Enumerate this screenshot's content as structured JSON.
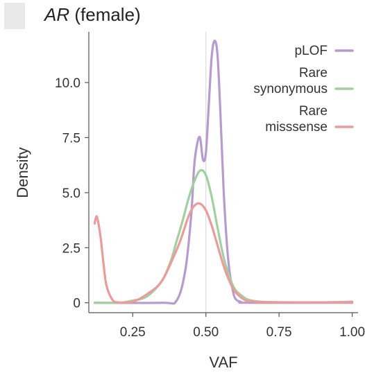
{
  "chart_data": {
    "type": "line",
    "title_gene": "AR",
    "title_rest": " (female)",
    "xlabel": "VAF",
    "ylabel": "Density",
    "xlim": [
      0.1,
      1.02
    ],
    "ylim": [
      -0.45,
      12.3
    ],
    "x_ticks": [
      0.25,
      0.5,
      0.75,
      1.0
    ],
    "x_tick_labels": [
      "0.25",
      "0.50",
      "0.75",
      "1.00"
    ],
    "y_ticks": [
      0,
      2.5,
      5.0,
      7.5,
      10.0
    ],
    "y_tick_labels": [
      "0",
      "2.5",
      "5.0",
      "7.5",
      "10.0"
    ],
    "reference_line_x": 0.5,
    "legend_position": "top-right",
    "series": [
      {
        "name": "pLOF",
        "legend_lines": [
          "pLOF"
        ],
        "color": "#b69ad0",
        "x": [
          0.12,
          0.35,
          0.4,
          0.43,
          0.45,
          0.46,
          0.47,
          0.48,
          0.49,
          0.5,
          0.51,
          0.52,
          0.53,
          0.54,
          0.55,
          0.56,
          0.57,
          0.58,
          0.59,
          0.6,
          0.62,
          0.65,
          1.0
        ],
        "y": [
          0,
          0,
          0.1,
          1.5,
          4.0,
          6.2,
          7.2,
          7.5,
          6.5,
          6.8,
          9.0,
          11.2,
          11.9,
          11.2,
          8.5,
          5.3,
          3.0,
          1.5,
          0.7,
          0.2,
          0.04,
          0,
          0
        ]
      },
      {
        "name": "Rare synonymous",
        "legend_lines": [
          "Rare",
          "synonymous"
        ],
        "color": "#9fd19f",
        "x": [
          0.12,
          0.2,
          0.25,
          0.3,
          0.35,
          0.38,
          0.4,
          0.42,
          0.44,
          0.46,
          0.48,
          0.5,
          0.52,
          0.54,
          0.56,
          0.58,
          0.6,
          0.63,
          0.65,
          0.7,
          0.8,
          0.9,
          1.0
        ],
        "y": [
          0,
          0,
          0.1,
          0.3,
          1.0,
          1.9,
          2.8,
          3.7,
          4.7,
          5.5,
          6.0,
          5.8,
          4.8,
          3.4,
          2.1,
          1.2,
          0.6,
          0.25,
          0.12,
          0.04,
          0.02,
          0.02,
          0.05
        ]
      },
      {
        "name": "Rare misssense",
        "legend_lines": [
          "Rare",
          "misssense"
        ],
        "color": "#ee9a98",
        "x": [
          0.12,
          0.125,
          0.13,
          0.14,
          0.15,
          0.16,
          0.18,
          0.2,
          0.25,
          0.3,
          0.35,
          0.4,
          0.42,
          0.44,
          0.46,
          0.48,
          0.5,
          0.52,
          0.54,
          0.56,
          0.58,
          0.6,
          0.63,
          0.65,
          0.7,
          0.8,
          0.9,
          1.0
        ],
        "y": [
          3.6,
          3.9,
          3.8,
          3.0,
          1.8,
          0.8,
          0.15,
          0.02,
          0.05,
          0.4,
          1.0,
          2.4,
          3.1,
          3.9,
          4.4,
          4.5,
          4.2,
          3.5,
          2.6,
          1.7,
          1.0,
          0.5,
          0.15,
          0.07,
          0.03,
          0.02,
          0.02,
          0.03
        ]
      }
    ]
  }
}
